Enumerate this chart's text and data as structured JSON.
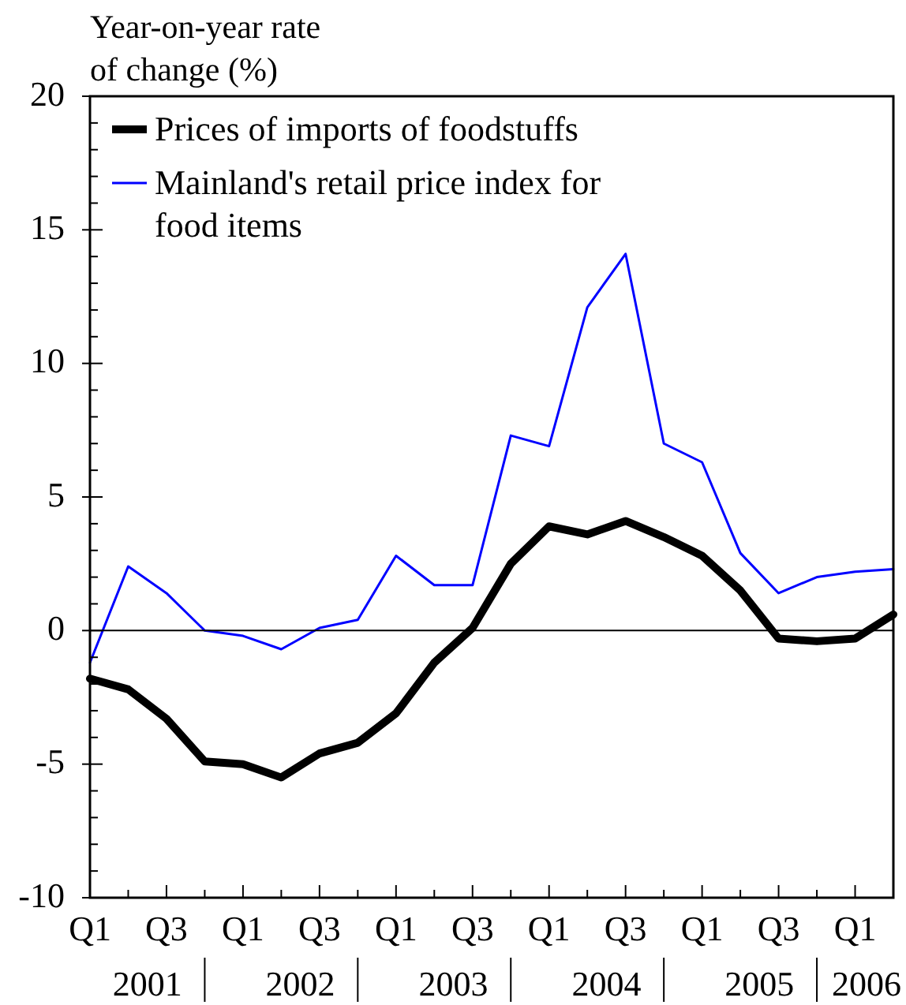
{
  "chart_data": {
    "type": "line",
    "ylabel": "Year-on-year rate of change (%)",
    "categories": [
      "Q1",
      null,
      "Q3",
      null,
      "Q1",
      null,
      "Q3",
      null,
      "Q1",
      null,
      "Q3",
      null,
      "Q1",
      null,
      "Q3",
      null,
      "Q1",
      null,
      "Q3",
      null,
      "Q1",
      null
    ],
    "series": [
      {
        "name": "Prices of imports of foodstuffs",
        "color": "#000000",
        "values": [
          -1.8,
          -2.2,
          -3.3,
          -4.9,
          -5.0,
          -5.5,
          -4.6,
          -4.2,
          -3.1,
          -1.2,
          0.1,
          2.5,
          3.9,
          3.6,
          4.1,
          3.5,
          2.8,
          1.5,
          -0.3,
          -0.4,
          -0.3,
          0.6
        ]
      },
      {
        "name": "Mainland's retail price index for food items",
        "color": "#0000ff",
        "values": [
          -1.2,
          2.4,
          1.4,
          0.0,
          -0.2,
          -0.7,
          0.1,
          0.4,
          2.8,
          1.7,
          1.7,
          7.3,
          6.9,
          12.1,
          14.1,
          7.0,
          6.3,
          2.9,
          1.4,
          2.0,
          2.2,
          2.3
        ]
      }
    ],
    "annotations": [
      "2001",
      "2002",
      "2003",
      "2004",
      "2005",
      "2006"
    ],
    "ylim": [
      -10,
      20
    ],
    "yticks": [
      -10,
      {
        "value": -9,
        "label": null
      },
      {
        "value": -8,
        "label": null
      },
      {
        "value": -7,
        "label": null
      },
      {
        "value": -6,
        "label": null
      },
      -5,
      {
        "value": -4,
        "label": null
      },
      {
        "value": -3,
        "label": null
      },
      {
        "value": -2,
        "label": null
      },
      {
        "value": -1,
        "label": null
      },
      0,
      {
        "value": 1,
        "label": null
      },
      {
        "value": 2,
        "label": null
      },
      {
        "value": 3,
        "label": null
      },
      {
        "value": 4,
        "label": null
      },
      5,
      {
        "value": 6,
        "label": null
      },
      {
        "value": 7,
        "label": null
      },
      {
        "value": 8,
        "label": null
      },
      {
        "value": 9,
        "label": null
      },
      10,
      {
        "value": 11,
        "label": null
      },
      {
        "value": 12,
        "label": null
      },
      {
        "value": 13,
        "label": null
      },
      {
        "value": 14,
        "label": null
      },
      15,
      {
        "value": 16,
        "label": null
      },
      {
        "value": 17,
        "label": null
      },
      {
        "value": 18,
        "label": null
      },
      {
        "value": 19,
        "label": null
      },
      20
    ],
    "ref_lines": [
      {
        "axis": "y",
        "value": 0,
        "color": "#000000"
      }
    ],
    "grid": false,
    "legend": "top left",
    "line_style": "solid",
    "marker": "none"
  }
}
